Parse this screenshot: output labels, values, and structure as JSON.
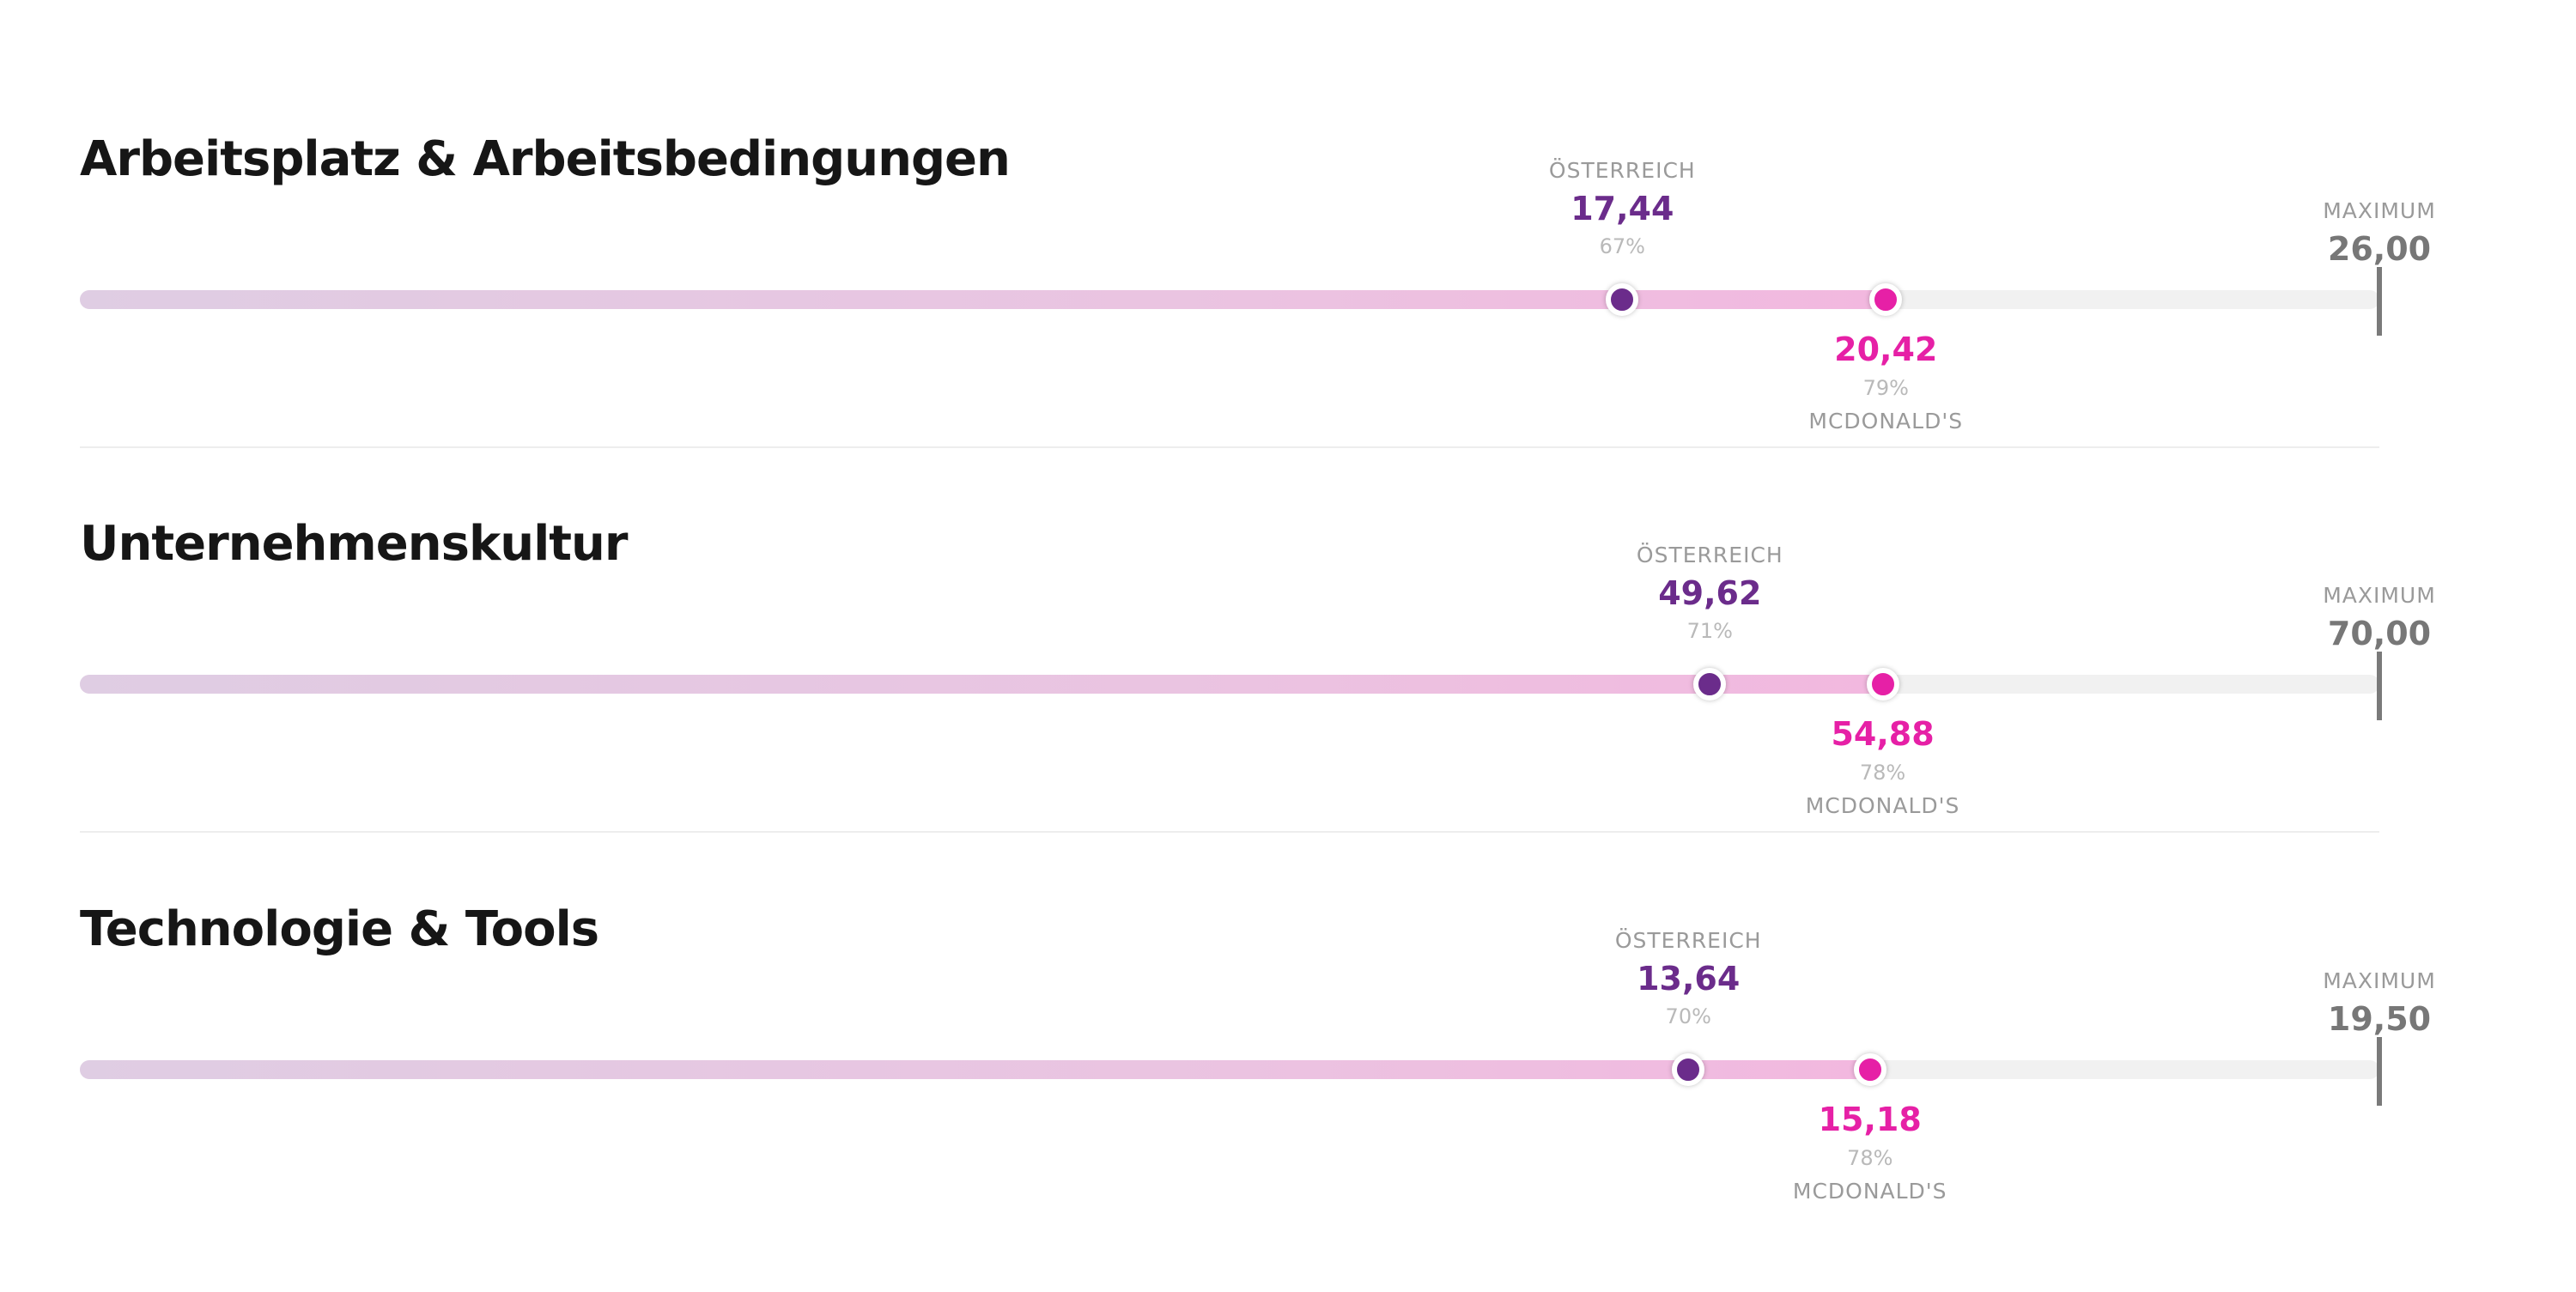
{
  "colors": {
    "austria": "#6b2c8b",
    "mcdonalds": "#e620a6",
    "maximum": "#777777"
  },
  "chart_data": [
    {
      "type": "bar",
      "title": "Arbeitsplatz & Arbeitsbedingungen",
      "max_label": "MAXIMUM",
      "max_value": 26.0,
      "max_text": "26,00",
      "austria": {
        "label": "ÖSTERREICH",
        "value": 17.44,
        "value_text": "17,44",
        "percent_text": "67%"
      },
      "company": {
        "label": "MCDONALD'S",
        "value": 20.42,
        "value_text": "20,42",
        "percent_text": "79%"
      }
    },
    {
      "type": "bar",
      "title": "Unternehmenskultur",
      "max_label": "MAXIMUM",
      "max_value": 70.0,
      "max_text": "70,00",
      "austria": {
        "label": "ÖSTERREICH",
        "value": 49.62,
        "value_text": "49,62",
        "percent_text": "71%"
      },
      "company": {
        "label": "MCDONALD'S",
        "value": 54.88,
        "value_text": "54,88",
        "percent_text": "78%"
      }
    },
    {
      "type": "bar",
      "title": "Technologie & Tools",
      "max_label": "MAXIMUM",
      "max_value": 19.5,
      "max_text": "19,50",
      "austria": {
        "label": "ÖSTERREICH",
        "value": 13.64,
        "value_text": "13,64",
        "percent_text": "70%"
      },
      "company": {
        "label": "MCDONALD'S",
        "value": 15.18,
        "value_text": "15,18",
        "percent_text": "78%"
      }
    }
  ]
}
